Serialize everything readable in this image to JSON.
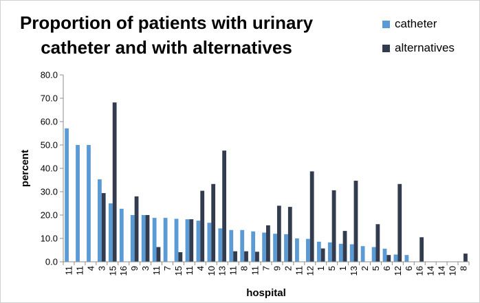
{
  "chart_data": {
    "type": "bar",
    "title_lines": [
      "Proportion of patients with urinary",
      "catheter and with alternatives"
    ],
    "xlabel": "hospital",
    "ylabel": "percent",
    "ylim": [
      0,
      80
    ],
    "yticks": [
      "0.0",
      "10.0",
      "20.0",
      "30.0",
      "40.0",
      "50.0",
      "60.0",
      "70.0",
      "80.0"
    ],
    "legend_position": "top-right",
    "grid": false,
    "categories": [
      "11",
      "11",
      "4",
      "3",
      "15",
      "16",
      "9",
      "3",
      "11",
      "7",
      "15",
      "11",
      "4",
      "10",
      "13",
      "11",
      "8",
      "11",
      "7",
      "9",
      "2",
      "11",
      "12",
      "1",
      "5",
      "1",
      "13",
      "2",
      "5",
      "6",
      "12",
      "6",
      "16",
      "14",
      "14",
      "10",
      "8"
    ],
    "series": [
      {
        "name": "catheter",
        "color": "#5b9bd5",
        "values": [
          57.1,
          50.0,
          50.0,
          35.3,
          25.0,
          22.7,
          20.0,
          20.0,
          18.8,
          18.8,
          18.4,
          18.2,
          17.6,
          16.7,
          14.3,
          13.6,
          13.6,
          13.0,
          12.5,
          12.0,
          11.8,
          10.0,
          9.8,
          8.6,
          8.3,
          7.7,
          7.5,
          6.7,
          6.3,
          5.6,
          3.1,
          2.9,
          0,
          0,
          0,
          0,
          0
        ]
      },
      {
        "name": "alternatives",
        "color": "#323c4e",
        "values": [
          0,
          0,
          0,
          29.4,
          68.2,
          0,
          28.0,
          20.0,
          6.3,
          0,
          4.1,
          18.2,
          30.4,
          33.3,
          47.6,
          4.5,
          4.5,
          4.3,
          15.6,
          24.0,
          23.5,
          0,
          38.7,
          5.7,
          30.6,
          13.2,
          34.7,
          0,
          16.1,
          2.9,
          33.3,
          0,
          10.5,
          0,
          0,
          0,
          3.5
        ]
      }
    ]
  }
}
